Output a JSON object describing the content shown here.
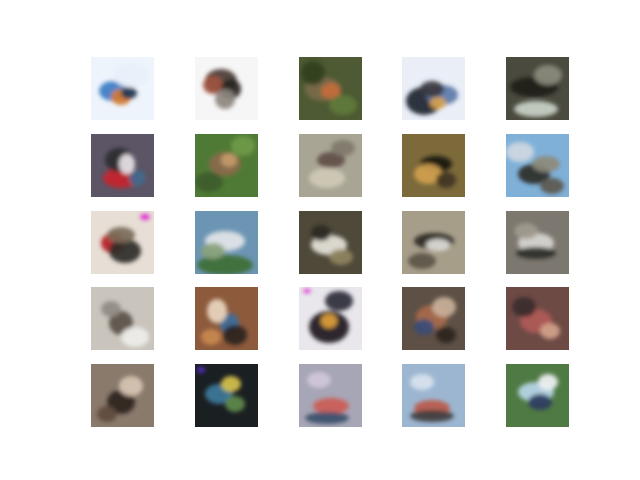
{
  "figure": {
    "rows": 5,
    "cols": 5,
    "cells": [
      {
        "name": "sample-r1c1",
        "bg": "#eef4fb",
        "blobs": [
          [
            "#3a7cc4",
            22,
            34,
            14,
            10
          ],
          [
            "#d27a2e",
            30,
            40,
            10,
            8
          ],
          [
            "#1b3550",
            38,
            36,
            8,
            6
          ],
          [
            "#e8f0fa",
            40,
            18,
            18,
            12
          ]
        ]
      },
      {
        "name": "sample-r1c2",
        "bg": "#f6f6f6",
        "blobs": [
          [
            "#4a3a33",
            26,
            24,
            16,
            12
          ],
          [
            "#a0523e",
            18,
            28,
            10,
            9
          ],
          [
            "#2a2522",
            36,
            32,
            10,
            10
          ],
          [
            "#8c857e",
            30,
            42,
            10,
            10
          ]
        ]
      },
      {
        "name": "sample-r1c3",
        "bg": "#4d5a33",
        "blobs": [
          [
            "#7b6a4a",
            24,
            32,
            18,
            12
          ],
          [
            "#c46c3a",
            32,
            34,
            10,
            8
          ],
          [
            "#2f3f1f",
            14,
            16,
            12,
            12
          ],
          [
            "#5f7a3b",
            44,
            48,
            14,
            10
          ]
        ]
      },
      {
        "name": "sample-r1c4",
        "bg": "#e9eef7",
        "blobs": [
          [
            "#1d2331",
            22,
            44,
            18,
            14
          ],
          [
            "#5b7aa8",
            40,
            38,
            16,
            10
          ],
          [
            "#3b3a40",
            30,
            32,
            12,
            8
          ],
          [
            "#d7a24e",
            36,
            46,
            8,
            6
          ]
        ]
      },
      {
        "name": "sample-r1c5",
        "bg": "#4b4a3f",
        "blobs": [
          [
            "#1d1b18",
            28,
            30,
            24,
            10
          ],
          [
            "#c9d3c8",
            30,
            52,
            22,
            8
          ],
          [
            "#8a8b7c",
            42,
            18,
            14,
            10
          ]
        ]
      },
      {
        "name": "sample-r2c1",
        "bg": "#5b5566",
        "blobs": [
          [
            "#c7252d",
            30,
            44,
            18,
            10
          ],
          [
            "#2b2b2f",
            28,
            26,
            14,
            12
          ],
          [
            "#e8e4e7",
            36,
            30,
            8,
            10
          ],
          [
            "#3f6b8e",
            46,
            44,
            8,
            8
          ]
        ]
      },
      {
        "name": "sample-r2c2",
        "bg": "#4f7a35",
        "blobs": [
          [
            "#8a6a4c",
            30,
            30,
            16,
            12
          ],
          [
            "#3d5c2a",
            14,
            48,
            14,
            10
          ],
          [
            "#c59a6b",
            34,
            26,
            8,
            7
          ],
          [
            "#6f9a46",
            48,
            12,
            12,
            10
          ]
        ]
      },
      {
        "name": "sample-r2c3",
        "bg": "#a9a594",
        "blobs": [
          [
            "#5e4f47",
            32,
            26,
            14,
            8
          ],
          [
            "#cfc9b6",
            28,
            44,
            18,
            10
          ],
          [
            "#7f786b",
            44,
            14,
            12,
            8
          ]
        ]
      },
      {
        "name": "sample-r2c4",
        "bg": "#7c6a3a",
        "blobs": [
          [
            "#1a1612",
            34,
            30,
            16,
            8
          ],
          [
            "#d1a04f",
            26,
            40,
            14,
            10
          ],
          [
            "#413522",
            44,
            46,
            10,
            8
          ]
        ]
      },
      {
        "name": "sample-r2c5",
        "bg": "#7fb0d8",
        "blobs": [
          [
            "#2d2c27",
            28,
            40,
            16,
            10
          ],
          [
            "#8d8a7b",
            40,
            30,
            14,
            8
          ],
          [
            "#cfd8e2",
            14,
            18,
            14,
            10
          ],
          [
            "#5c584e",
            46,
            52,
            12,
            8
          ]
        ]
      },
      {
        "name": "sample-r3c1",
        "bg": "#e7dfd6",
        "blobs": [
          [
            "#b41e22",
            22,
            32,
            12,
            10
          ],
          [
            "#2e2a27",
            34,
            40,
            16,
            12
          ],
          [
            "#7b6a58",
            30,
            24,
            14,
            8
          ],
          [
            "#e01bd3",
            54,
            6,
            5,
            3
          ]
        ]
      },
      {
        "name": "sample-r3c2",
        "bg": "#6c95b3",
        "blobs": [
          [
            "#e3e5e8",
            30,
            30,
            20,
            10
          ],
          [
            "#3e6f35",
            30,
            54,
            28,
            10
          ],
          [
            "#8aa27a",
            18,
            40,
            12,
            8
          ]
        ]
      },
      {
        "name": "sample-r3c3",
        "bg": "#4e4938",
        "blobs": [
          [
            "#e6e3da",
            30,
            34,
            18,
            10
          ],
          [
            "#2a2924",
            22,
            22,
            10,
            8
          ],
          [
            "#8f8462",
            42,
            46,
            12,
            8
          ]
        ]
      },
      {
        "name": "sample-r3c4",
        "bg": "#a79e8a",
        "blobs": [
          [
            "#2a2723",
            32,
            30,
            20,
            8
          ],
          [
            "#e0dfda",
            36,
            34,
            12,
            6
          ],
          [
            "#5b5446",
            20,
            50,
            14,
            8
          ]
        ]
      },
      {
        "name": "sample-r3c5",
        "bg": "#7c786f",
        "blobs": [
          [
            "#d8d6d2",
            30,
            32,
            18,
            10
          ],
          [
            "#2b2a28",
            30,
            42,
            20,
            6
          ],
          [
            "#a19a8e",
            20,
            20,
            12,
            8
          ]
        ]
      },
      {
        "name": "sample-r4c1",
        "bg": "#c9c5bd",
        "blobs": [
          [
            "#5a5048",
            30,
            36,
            12,
            12
          ],
          [
            "#8f8a83",
            20,
            22,
            10,
            8
          ],
          [
            "#efeee9",
            44,
            50,
            14,
            10
          ]
        ]
      },
      {
        "name": "sample-r4c2",
        "bg": "#8d5a3c",
        "blobs": [
          [
            "#3c6e98",
            34,
            36,
            10,
            10
          ],
          [
            "#ead6c0",
            22,
            24,
            10,
            12
          ],
          [
            "#2b2321",
            40,
            48,
            12,
            10
          ],
          [
            "#c9884f",
            16,
            50,
            10,
            8
          ]
        ]
      },
      {
        "name": "sample-r4c3",
        "bg": "#e9e7ec",
        "blobs": [
          [
            "#1c1a1f",
            30,
            40,
            20,
            16
          ],
          [
            "#e0a13a",
            30,
            34,
            8,
            7
          ],
          [
            "#2c2a3a",
            40,
            14,
            14,
            10
          ],
          [
            "#e01bd3",
            8,
            4,
            4,
            2
          ]
        ]
      },
      {
        "name": "sample-r4c4",
        "bg": "#5e5045",
        "blobs": [
          [
            "#a86a4a",
            30,
            30,
            16,
            12
          ],
          [
            "#3b4c78",
            22,
            40,
            10,
            8
          ],
          [
            "#c9b09a",
            42,
            20,
            12,
            10
          ],
          [
            "#2a231f",
            44,
            48,
            10,
            8
          ]
        ]
      },
      {
        "name": "sample-r4c5",
        "bg": "#6e4a45",
        "blobs": [
          [
            "#b05a57",
            30,
            34,
            16,
            12
          ],
          [
            "#3a2d2a",
            18,
            20,
            12,
            10
          ],
          [
            "#d2a28a",
            44,
            44,
            10,
            8
          ]
        ]
      },
      {
        "name": "sample-r5c1",
        "bg": "#8a7a6c",
        "blobs": [
          [
            "#2a221e",
            30,
            38,
            14,
            12
          ],
          [
            "#d8c5b4",
            40,
            22,
            12,
            10
          ],
          [
            "#5e4a3e",
            16,
            50,
            10,
            8
          ]
        ]
      },
      {
        "name": "sample-r5c2",
        "bg": "#1a1f22",
        "blobs": [
          [
            "#3d7a9a",
            24,
            30,
            14,
            10
          ],
          [
            "#d7c24b",
            36,
            20,
            10,
            8
          ],
          [
            "#5f8a4a",
            40,
            40,
            10,
            8
          ],
          [
            "#5b2ad6",
            6,
            6,
            4,
            3
          ]
        ]
      },
      {
        "name": "sample-r5c3",
        "bg": "#a7a6b6",
        "blobs": [
          [
            "#cc5b55",
            32,
            42,
            18,
            8
          ],
          [
            "#3b4e6a",
            28,
            54,
            22,
            6
          ],
          [
            "#d0c8da",
            20,
            16,
            12,
            8
          ]
        ]
      },
      {
        "name": "sample-r5c4",
        "bg": "#9cb6d1",
        "blobs": [
          [
            "#bb5a4a",
            30,
            44,
            18,
            8
          ],
          [
            "#3f3d3c",
            30,
            52,
            22,
            6
          ],
          [
            "#d9e3ee",
            20,
            18,
            12,
            8
          ]
        ]
      },
      {
        "name": "sample-r5c5",
        "bg": "#4f7a44",
        "blobs": [
          [
            "#b9d6e9",
            30,
            28,
            18,
            10
          ],
          [
            "#2a3b60",
            34,
            38,
            12,
            8
          ],
          [
            "#f0f2f5",
            42,
            18,
            10,
            8
          ]
        ]
      }
    ]
  }
}
